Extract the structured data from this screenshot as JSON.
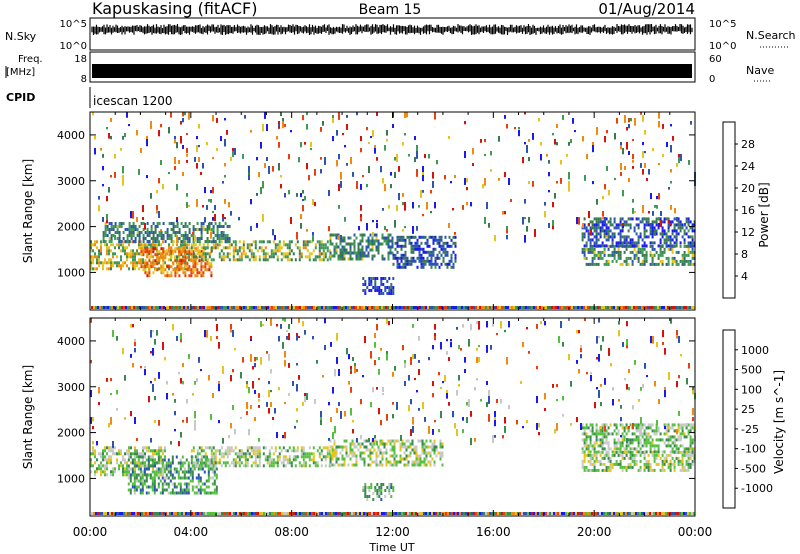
{
  "header": {
    "station": "Kapuskasing (fitACF)",
    "beam": "Beam 15",
    "date": "01/Aug/2014"
  },
  "strip_panels": {
    "nsky": {
      "label": "N.Sky",
      "ticks_left": [
        "10^5",
        "10^0"
      ],
      "ticks_right": [
        "10^5",
        "10^0"
      ],
      "right_label": "N.Search"
    },
    "freq": {
      "label_line1": "Freq.",
      "label_line2": "[MHz]",
      "ticks_left": [
        "18",
        "8"
      ],
      "ticks_right": [
        "60",
        "0"
      ],
      "right_label": "Nave"
    },
    "cpid": {
      "label": "CPID",
      "value": "icescan 1200"
    }
  },
  "chart_data": [
    {
      "type": "heatmap",
      "name": "power",
      "xlabel": "",
      "ylabel": "Slant Range [km]",
      "xlim": [
        0,
        24
      ],
      "ylim": [
        180,
        4500
      ],
      "yticks": [
        1000,
        2000,
        3000,
        4000
      ],
      "xticks": [
        0,
        4,
        8,
        12,
        16,
        20,
        24
      ],
      "colorbar": {
        "label": "Power [dB]",
        "ticks": [
          "4",
          "8",
          "12",
          "16",
          "20",
          "24",
          "28"
        ],
        "colors": [
          "#1a1aee",
          "#2b55b0",
          "#3a7a50",
          "#3f9a55",
          "#e6c41f",
          "#f08a10",
          "#e8400e",
          "#d4130e"
        ]
      },
      "regions": [
        {
          "x0": 0.0,
          "x1": 4.0,
          "y0": 1050,
          "y1": 1700,
          "level": 0.55
        },
        {
          "x0": 2.0,
          "x1": 4.8,
          "y0": 900,
          "y1": 1550,
          "level": 0.75
        },
        {
          "x0": 4.0,
          "x1": 9.5,
          "y0": 1250,
          "y1": 1700,
          "level": 0.45
        },
        {
          "x0": 0.5,
          "x1": 5.5,
          "y0": 1700,
          "y1": 2100,
          "level": 0.3
        },
        {
          "x0": 9.5,
          "x1": 12.0,
          "y0": 1300,
          "y1": 1850,
          "level": 0.3
        },
        {
          "x0": 12.0,
          "x1": 14.5,
          "y0": 1100,
          "y1": 1800,
          "level": 0.15
        },
        {
          "x0": 10.8,
          "x1": 12.0,
          "y0": 550,
          "y1": 900,
          "level": 0.05
        },
        {
          "x0": 19.5,
          "x1": 24.0,
          "y0": 1150,
          "y1": 1600,
          "level": 0.35
        },
        {
          "x0": 19.5,
          "x1": 24.0,
          "y0": 1600,
          "y1": 2200,
          "level": 0.15
        },
        {
          "x0": 0.0,
          "x1": 24.0,
          "y0": 1800,
          "y1": 4500,
          "level": 0.1,
          "sparse": true
        }
      ]
    },
    {
      "type": "heatmap",
      "name": "velocity",
      "xlabel": "Time UT",
      "ylabel": "Slant Range [km]",
      "xlim": [
        0,
        24
      ],
      "ylim": [
        180,
        4500
      ],
      "yticks": [
        1000,
        2000,
        3000,
        4000
      ],
      "xticks": [
        0,
        4,
        8,
        12,
        16,
        20,
        24
      ],
      "xticklabels": [
        "00:00",
        "04:00",
        "08:00",
        "12:00",
        "16:00",
        "20:00",
        "00:00"
      ],
      "colorbar": {
        "label": "Velocity [m s^-1]",
        "ticks": [
          "1000",
          "500",
          "100",
          "25",
          "-25",
          "-100",
          "-500",
          "-1000"
        ],
        "colors": [
          "#1a1aee",
          "#2b55b0",
          "#3a8a50",
          "#55c040",
          "#c8c8c8",
          "#e6c41f",
          "#f08a10",
          "#e8400e",
          "#d4130e"
        ]
      },
      "regions": [
        {
          "x0": 0.0,
          "x1": 3.0,
          "y0": 1050,
          "y1": 1700,
          "level": 0.45
        },
        {
          "x0": 1.5,
          "x1": 5.0,
          "y0": 700,
          "y1": 1500,
          "level": 0.3
        },
        {
          "x0": 4.0,
          "x1": 9.5,
          "y0": 1250,
          "y1": 1700,
          "level": 0.45
        },
        {
          "x0": 9.5,
          "x1": 14.0,
          "y0": 1300,
          "y1": 1850,
          "level": 0.45
        },
        {
          "x0": 10.8,
          "x1": 12.0,
          "y0": 550,
          "y1": 900,
          "level": 0.35
        },
        {
          "x0": 19.5,
          "x1": 24.0,
          "y0": 1150,
          "y1": 1600,
          "level": 0.45
        },
        {
          "x0": 19.5,
          "x1": 24.0,
          "y0": 1600,
          "y1": 2200,
          "level": 0.4
        },
        {
          "x0": 0.0,
          "x1": 24.0,
          "y0": 1800,
          "y1": 4500,
          "level": 0.5,
          "sparse": true
        }
      ]
    }
  ]
}
